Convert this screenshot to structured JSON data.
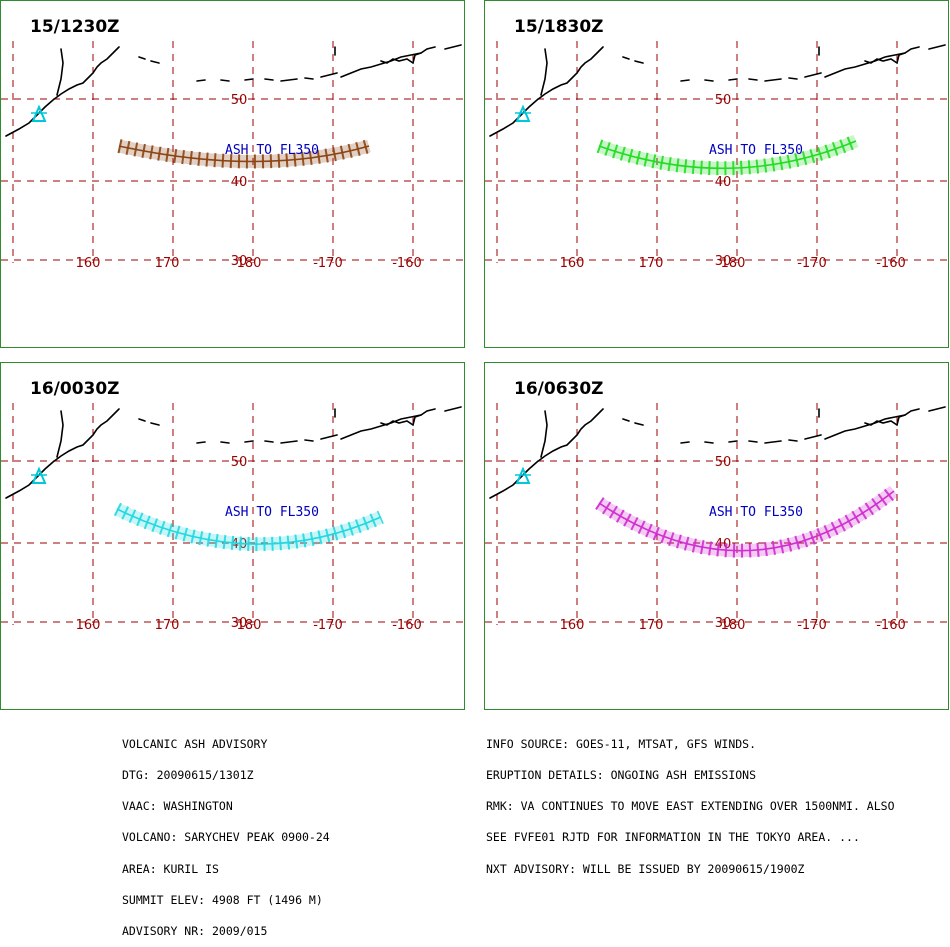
{
  "panels": [
    {
      "time": "15/1230Z",
      "ash_color": "#8B4513",
      "label": "ASH TO FL350"
    },
    {
      "time": "15/1830Z",
      "ash_color": "#22DD22",
      "label": "ASH TO FL350"
    },
    {
      "time": "16/0030Z",
      "ash_color": "#22D8E0",
      "label": "ASH TO FL350"
    },
    {
      "time": "16/0630Z",
      "ash_color": "#D02ED0",
      "label": "ASH TO FL350"
    }
  ],
  "grid": {
    "lat_labels": [
      "50",
      "40",
      "30"
    ],
    "lon_labels": [
      "160",
      "170",
      "180",
      "-170",
      "-160"
    ]
  },
  "colors": {
    "grid": "#990000",
    "label_blue": "#0000C0",
    "border": "#2E8B2E",
    "volcano": "#00C8D8"
  },
  "advisory_left": [
    "VOLCANIC ASH ADVISORY",
    "DTG: 20090615/1301Z",
    "VAAC: WASHINGTON",
    "VOLCANO: SARYCHEV PEAK 0900-24",
    "AREA: KURIL IS",
    "SUMMIT ELEV: 4908 FT (1496 M)",
    "ADVISORY NR: 2009/015"
  ],
  "advisory_right": [
    "INFO SOURCE: GOES-11, MTSAT, GFS WINDS.",
    "ERUPTION DETAILS: ONGOING ASH EMISSIONS",
    "RMK: VA CONTINUES TO MOVE EAST EXTENDING OVER 1500NMI. ALSO",
    "SEE FVFE01 RJTD FOR INFORMATION IN THE TOKYO AREA. ...",
    "NXT ADVISORY: WILL BE ISSUED BY 20090615/1900Z"
  ]
}
